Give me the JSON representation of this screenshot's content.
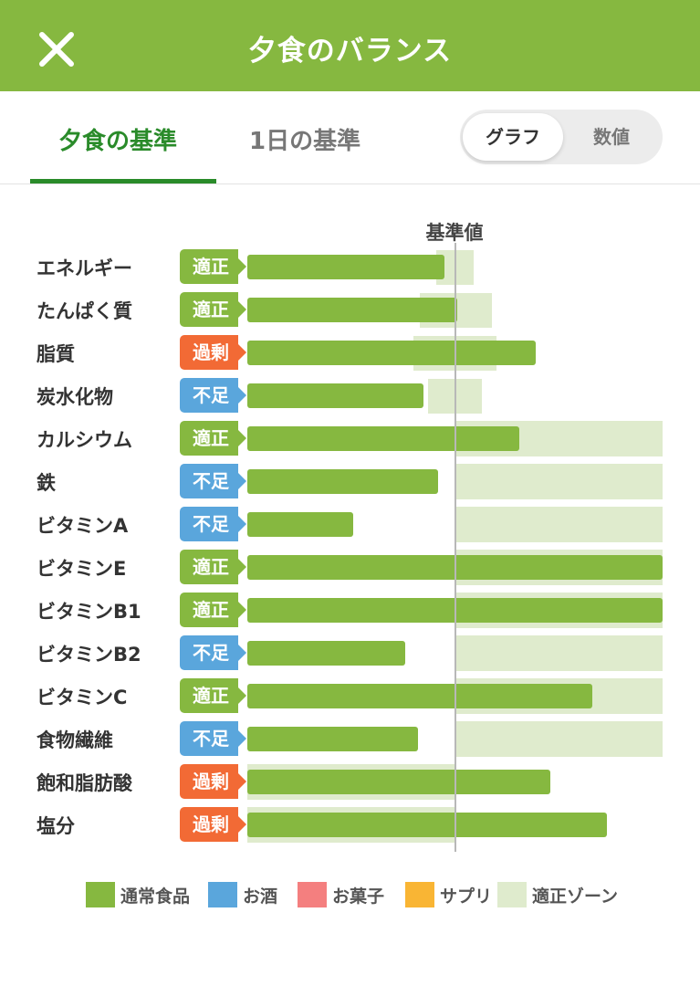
{
  "header": {
    "title": "夕食のバランス",
    "close_icon": "close-icon"
  },
  "tabs": [
    {
      "label": "夕食の基準",
      "selected": true
    },
    {
      "label": "1日の基準",
      "selected": false
    }
  ],
  "view_toggle": {
    "options": [
      "グラフ",
      "数値"
    ],
    "selected": "グラフ"
  },
  "chart_data": {
    "type": "bar",
    "orientation": "horizontal",
    "reference_label": "基準値",
    "categories": [
      "エネルギー",
      "たんぱく質",
      "脂質",
      "炭水化物",
      "カルシウム",
      "鉄",
      "ビタミンA",
      "ビタミンE",
      "ビタミンB1",
      "ビタミンB2",
      "ビタミンC",
      "食物繊維",
      "飽和脂肪酸",
      "塩分"
    ],
    "status": [
      "適正",
      "適正",
      "過剰",
      "不足",
      "適正",
      "不足",
      "不足",
      "適正",
      "適正",
      "不足",
      "適正",
      "不足",
      "過剰",
      "過剰"
    ],
    "values": [
      95,
      101,
      139,
      85,
      131,
      92,
      51,
      200,
      200,
      76,
      166,
      82,
      146,
      173
    ],
    "ideal_zone": [
      [
        91,
        109
      ],
      [
        83,
        118
      ],
      [
        80,
        120
      ],
      [
        87,
        113
      ],
      [
        100,
        200
      ],
      [
        100,
        200
      ],
      [
        100,
        200
      ],
      [
        100,
        200
      ],
      [
        100,
        200
      ],
      [
        100,
        200
      ],
      [
        100,
        200
      ],
      [
        100,
        200
      ],
      [
        0,
        100
      ],
      [
        0,
        100
      ]
    ],
    "reference_value": 100,
    "xlim": [
      0,
      200
    ]
  },
  "status_colors": {
    "適正": "#86b840",
    "過剰": "#f26a35",
    "不足": "#5aa6dc"
  },
  "legend": [
    {
      "label": "通常食品",
      "color": "#86b840"
    },
    {
      "label": "お酒",
      "color": "#5aa6dc"
    },
    {
      "label": "お菓子",
      "color": "#f47f7f"
    },
    {
      "label": "サプリ",
      "color": "#f9b534"
    },
    {
      "label": "適正ゾーン",
      "color": "#dfebcd"
    }
  ]
}
